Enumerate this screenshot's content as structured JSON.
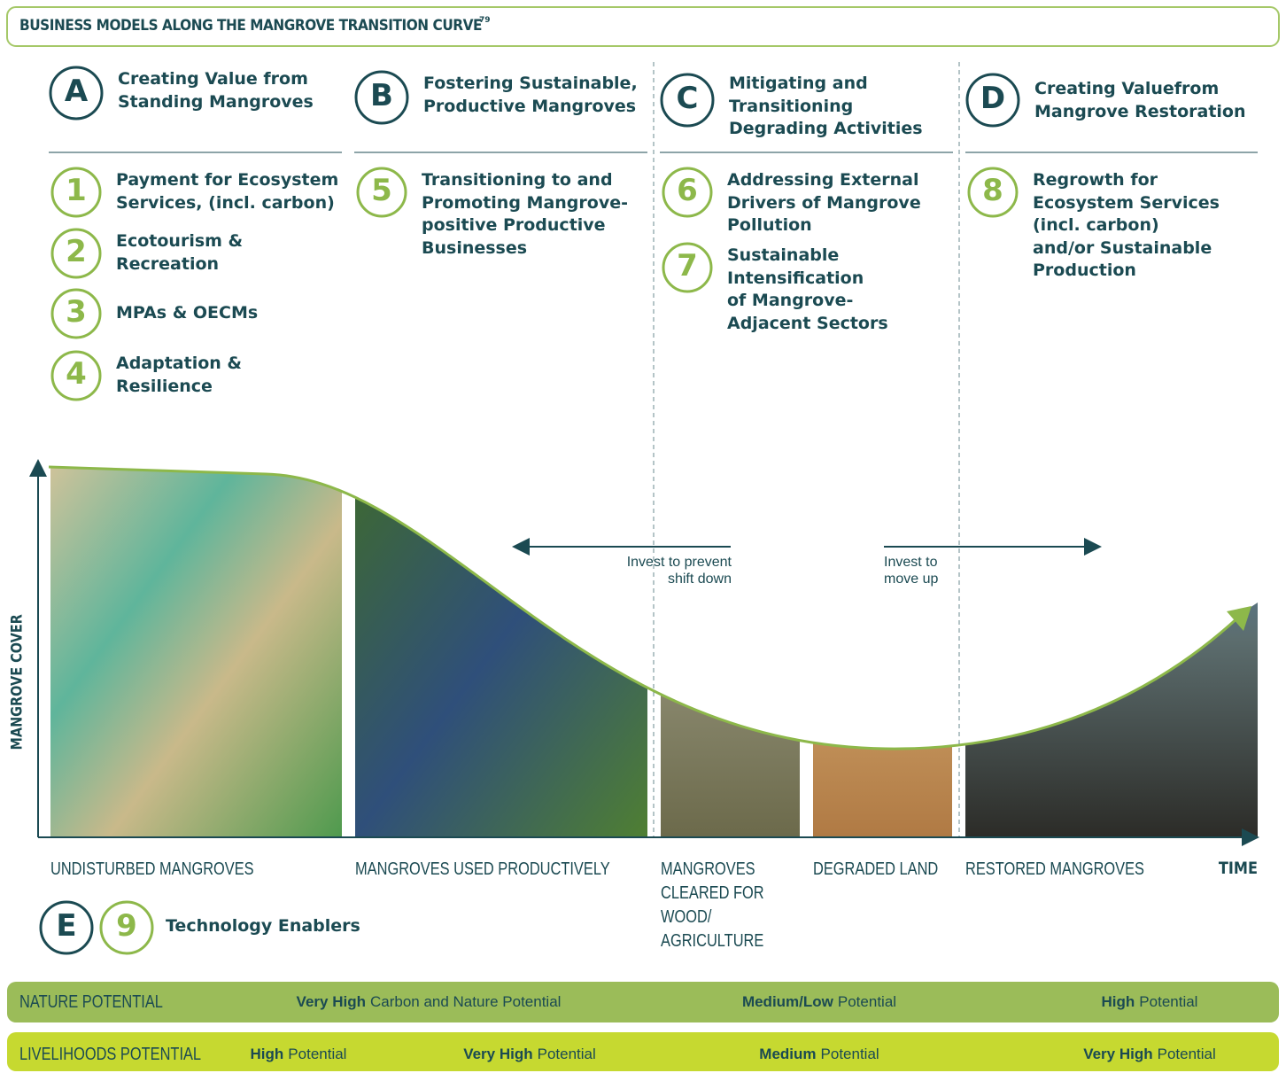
{
  "header": {
    "title": "BUSINESS MODELS ALONG THE MANGROVE TRANSITION CURVE",
    "footnote": "79"
  },
  "columns": [
    {
      "letter": "A",
      "heading": [
        "Creating Value from",
        "Standing Mangroves"
      ],
      "items": [
        {
          "number": "1",
          "lines": [
            "Payment for Ecosystem",
            "Services, (incl. carbon)"
          ]
        },
        {
          "number": "2",
          "lines": [
            "Ecotourism &",
            "Recreation"
          ]
        },
        {
          "number": "3",
          "lines": [
            "MPAs & OECMs"
          ]
        },
        {
          "number": "4",
          "lines": [
            "Adaptation &",
            "Resilience"
          ]
        }
      ]
    },
    {
      "letter": "B",
      "heading": [
        "Fostering Sustainable,",
        "Productive Mangroves"
      ],
      "items": [
        {
          "number": "5",
          "lines": [
            "Transitioning to and",
            "Promoting Mangrove-",
            "positive Productive",
            "Businesses"
          ]
        }
      ]
    },
    {
      "letter": "C",
      "heading": [
        "Mitigating and",
        "Transitioning",
        "Degrading Activities"
      ],
      "items": [
        {
          "number": "6",
          "lines": [
            "Addressing External",
            "Drivers of Mangrove",
            "Pollution"
          ]
        },
        {
          "number": "7",
          "lines": [
            "Sustainable",
            "Intensification",
            "of Mangrove-",
            "Adjacent Sectors"
          ]
        }
      ]
    },
    {
      "letter": "D",
      "heading": [
        "Creating Valuefrom",
        "Mangrove Restoration"
      ],
      "items": [
        {
          "number": "8",
          "lines": [
            "Regrowth for",
            "Ecosystem Services",
            "(incl. carbon)",
            "and/or Sustainable",
            "Production"
          ]
        }
      ]
    }
  ],
  "enablers": {
    "letter": "E",
    "number": "9",
    "label": "Technology Enablers"
  },
  "axes": {
    "y_label": "MANGROVE COVER",
    "x_label": "TIME"
  },
  "arrows": [
    {
      "lines": [
        "Invest to prevent",
        "shift down"
      ]
    },
    {
      "lines": [
        "Invest to",
        "move up"
      ]
    }
  ],
  "stages": [
    {
      "lines": [
        "UNDISTURBED MANGROVES"
      ]
    },
    {
      "lines": [
        "MANGROVES USED PRODUCTIVELY"
      ]
    },
    {
      "lines": [
        "MANGROVES",
        "CLEARED FOR",
        "WOOD/",
        "AGRICULTURE"
      ]
    },
    {
      "lines": [
        "DEGRADED LAND"
      ]
    },
    {
      "lines": [
        "RESTORED MANGROVES"
      ]
    }
  ],
  "potential_bars": [
    {
      "label": "NATURE POTENTIAL",
      "segments": [
        {
          "bold": "Very High",
          "text": "Carbon and Nature Potential"
        },
        {
          "bold": "Medium/Low",
          "text": "Potential"
        },
        {
          "bold": "High",
          "text": "Potential"
        }
      ]
    },
    {
      "label": "LIVELIHOODS POTENTIAL",
      "segments": [
        {
          "bold": "High",
          "text": "Potential"
        },
        {
          "bold": "Very High",
          "text": "Potential"
        },
        {
          "bold": "Medium",
          "text": "Potential"
        },
        {
          "bold": "Very High",
          "text": "Potential"
        }
      ]
    }
  ]
}
